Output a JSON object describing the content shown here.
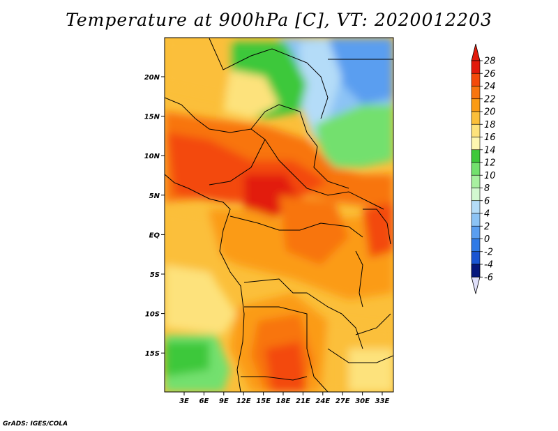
{
  "title": "Temperature at 900hPa [C], VT: 2020012203",
  "credit": "GrADS: IGES/COLA",
  "map": {
    "lon_labels": [
      "3E",
      "6E",
      "9E",
      "12E",
      "15E",
      "18E",
      "21E",
      "24E",
      "27E",
      "30E",
      "33E"
    ],
    "lat_labels": [
      "20N",
      "15N",
      "10N",
      "5N",
      "EQ",
      "5S",
      "10S",
      "15S"
    ],
    "projection": "lat-lon"
  },
  "colorbar": {
    "levels": [
      "28",
      "26",
      "24",
      "22",
      "20",
      "18",
      "16",
      "14",
      "12",
      "10",
      "8",
      "6",
      "4",
      "2",
      "0",
      "-2",
      "-4",
      "-6"
    ],
    "colors": [
      "#e21a0b",
      "#f34a0a",
      "#f8750e",
      "#fb9b14",
      "#fbbf3a",
      "#fde27c",
      "#fdf6b0",
      "#3ec83a",
      "#73e06e",
      "#a8f0a0",
      "#d2f8d0",
      "#b4dcf8",
      "#8cc3f5",
      "#5a9ef0",
      "#2f7ae6",
      "#1a55d2",
      "#0a32b4",
      "#06177c"
    ],
    "top_triangle_color": "#e21a0b",
    "bottom_triangle_color": "#e0e0fa"
  }
}
